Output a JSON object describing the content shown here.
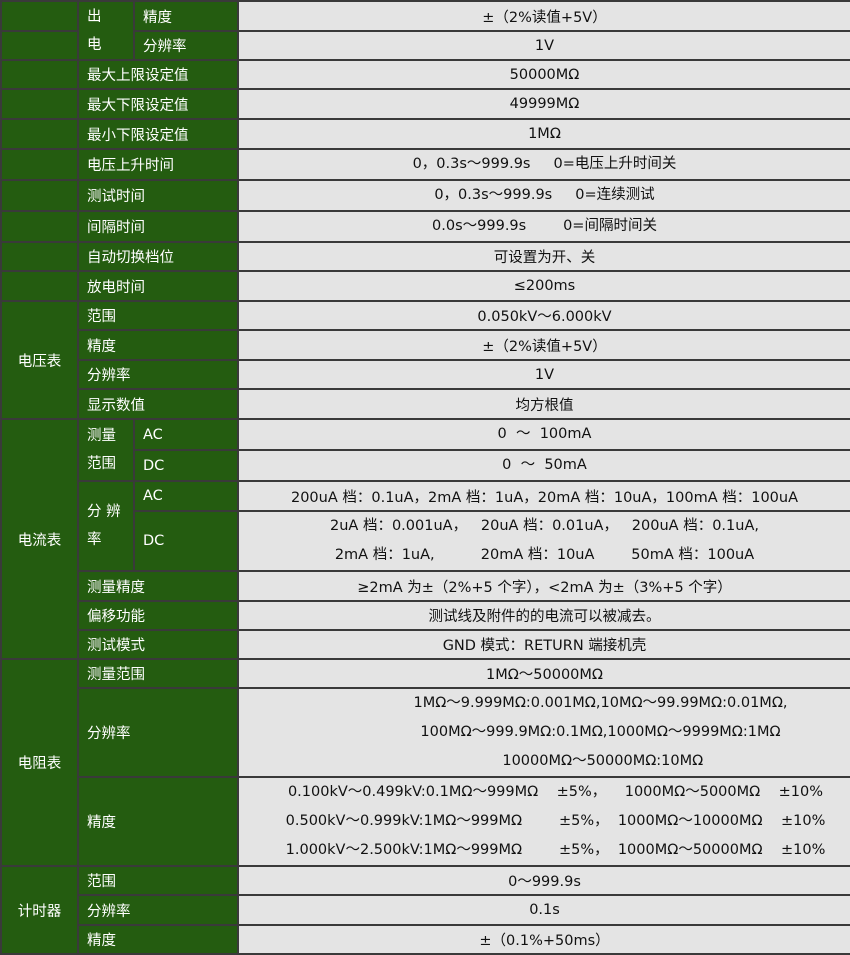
{
  "colors": {
    "label_bg": "#245c10",
    "value_bg": "#e4e4e4",
    "label_text": "#ffffff"
  },
  "output": {
    "group": "出电",
    "group_top": "出",
    "group_bottom": "电",
    "rows": [
      {
        "label": "精度",
        "value": "±（2%读值+5V）"
      },
      {
        "label": "分辨率",
        "value": "1V"
      }
    ]
  },
  "settings": [
    {
      "label": "最大上限设定值",
      "value": "50000MΩ"
    },
    {
      "label": "最大下限设定值",
      "value": "49999MΩ"
    },
    {
      "label": "最小下限设定值",
      "value": "1MΩ"
    },
    {
      "label": "电压上升时间",
      "value": "0，0.3s～999.9s     0=电压上升时间关"
    },
    {
      "label": "测试时间",
      "value": "0，0.3s～999.9s     0=连续测试"
    },
    {
      "label": "间隔时间",
      "value": "0.0s～999.9s        0=间隔时间关"
    },
    {
      "label": "自动切换档位",
      "value": "可设置为开、关"
    },
    {
      "label": "放电时间",
      "value": "≤200ms"
    }
  ],
  "voltmeter": {
    "title": "电压表",
    "rows": [
      {
        "label": "范围",
        "value": "0.050kV～6.000kV"
      },
      {
        "label": "精度",
        "value": "±（2%读值+5V）"
      },
      {
        "label": "分辨率",
        "value": "1V"
      },
      {
        "label": "显示数值",
        "value": "均方根值"
      }
    ]
  },
  "ammeter": {
    "title": "电流表",
    "range": {
      "label_top": "测量",
      "label_bottom": "范围",
      "ac_label": "AC",
      "ac_value": "0  ～  100mA",
      "dc_label": "DC",
      "dc_value": "0  ～  50mA"
    },
    "resolution": {
      "label_top": "分 辨",
      "label_bottom": "率",
      "ac_label": "AC",
      "ac_value": "200uA 档：0.1uA，2mA 档：1uA，20mA 档：10uA，100mA 档：100uA",
      "dc_label": "DC",
      "dc_value": "2uA 档：0.001uA，   20uA 档：0.01uA，   200uA 档：0.1uA,\n2mA 档：1uA,          20mA 档：10uA        50mA 档：100uA"
    },
    "rows": [
      {
        "label": "测量精度",
        "value": "≥2mA 为±（2%+5 个字），<2mA 为±（3%+5 个字）"
      },
      {
        "label": "偏移功能",
        "value": "测试线及附件的的电流可以被减去。"
      },
      {
        "label": "测试模式",
        "value": "GND 模式：RETURN 端接机壳"
      }
    ]
  },
  "ohmmeter": {
    "title": "电阻表",
    "rows": [
      {
        "label": "测量范围",
        "value": "1MΩ～50000MΩ"
      },
      {
        "label": "分辨率",
        "value": "1MΩ～9.999MΩ:0.001MΩ,10MΩ～99.99MΩ:0.01MΩ,\n100MΩ～999.9MΩ:0.1MΩ,1000MΩ～9999MΩ:1MΩ\n 10000MΩ～50000MΩ:10MΩ"
      },
      {
        "label": "精度",
        "value": "0.100kV～0.499kV:0.1MΩ～999MΩ    ±5%，    1000MΩ～5000MΩ    ±10%\n0.500kV～0.999kV:1MΩ～999MΩ        ±5%，  1000MΩ～10000MΩ    ±10%\n1.000kV～2.500kV:1MΩ～999MΩ        ±5%，  1000MΩ～50000MΩ    ±10%"
      }
    ]
  },
  "timer": {
    "title": "计时器",
    "rows": [
      {
        "label": "范围",
        "value": "0～999.9s"
      },
      {
        "label": "分辨率",
        "value": "0.1s"
      },
      {
        "label": "精度",
        "value": "±（0.1%+50ms）"
      }
    ]
  }
}
